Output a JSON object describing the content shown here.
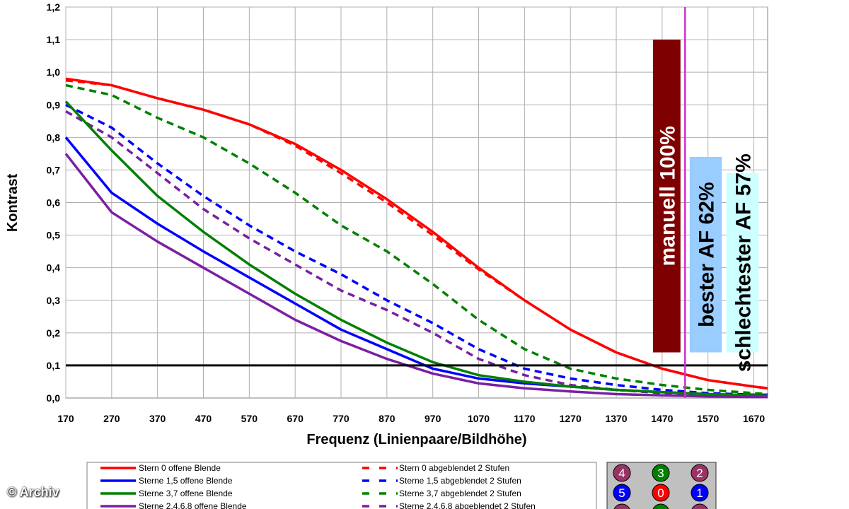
{
  "chart_data": {
    "type": "line",
    "title": "",
    "xlabel": "Frequenz (Linienpaare/Bildhöhe)",
    "ylabel": "Kontrast",
    "xlim": [
      170,
      1700
    ],
    "ylim": [
      0,
      1.2
    ],
    "xticks": [
      "170",
      "270",
      "370",
      "470",
      "570",
      "670",
      "770",
      "870",
      "970",
      "1070",
      "1170",
      "1270",
      "1370",
      "1470",
      "1570",
      "1670"
    ],
    "yticks": [
      "0,0",
      "0,1",
      "0,2",
      "0,3",
      "0,4",
      "0,5",
      "0,6",
      "0,7",
      "0,8",
      "0,9",
      "1,0",
      "1,1",
      "1,2"
    ],
    "grid": true,
    "legend_position": "bottom",
    "threshold": {
      "y": 0.1,
      "color": "#000000"
    },
    "focus_marker": {
      "x": 1520,
      "color": "#cc33cc"
    },
    "x": [
      170,
      270,
      370,
      470,
      570,
      670,
      770,
      870,
      970,
      1070,
      1170,
      1270,
      1370,
      1470,
      1570,
      1670,
      1700
    ],
    "series": [
      {
        "name": "Stern 0 offene Blende",
        "color": "#ff0000",
        "dash": false,
        "values": [
          0.98,
          0.96,
          0.92,
          0.885,
          0.84,
          0.78,
          0.7,
          0.61,
          0.51,
          0.4,
          0.3,
          0.21,
          0.14,
          0.09,
          0.055,
          0.035,
          0.03
        ]
      },
      {
        "name": "Sterne 1,5 offene Blende",
        "color": "#0000ff",
        "dash": false,
        "values": [
          0.8,
          0.63,
          0.535,
          0.45,
          0.37,
          0.29,
          0.21,
          0.15,
          0.09,
          0.06,
          0.045,
          0.035,
          0.025,
          0.018,
          0.012,
          0.008,
          0.007
        ]
      },
      {
        "name": "Sterne 3,7 offene Blende",
        "color": "#008000",
        "dash": false,
        "values": [
          0.91,
          0.76,
          0.62,
          0.51,
          0.41,
          0.32,
          0.24,
          0.17,
          0.11,
          0.07,
          0.05,
          0.035,
          0.025,
          0.018,
          0.012,
          0.008,
          0.007
        ]
      },
      {
        "name": "Sterne 2,4,6,8 offene Blende",
        "color": "#7b1fa2",
        "dash": false,
        "values": [
          0.75,
          0.57,
          0.48,
          0.4,
          0.32,
          0.24,
          0.175,
          0.12,
          0.075,
          0.045,
          0.03,
          0.02,
          0.012,
          0.008,
          0.005,
          0.003,
          0.003
        ]
      },
      {
        "name": "Stern 0 abgeblendet 2 Stufen",
        "color": "#ff0000",
        "dash": true,
        "values": [
          0.975,
          0.96,
          0.92,
          0.885,
          0.84,
          0.775,
          0.69,
          0.6,
          0.5,
          0.395,
          0.3,
          0.21,
          0.14,
          0.09,
          0.055,
          0.035,
          0.03
        ]
      },
      {
        "name": "Sterne 1,5 abgeblendet 2 Stufen",
        "color": "#0000ff",
        "dash": true,
        "values": [
          0.9,
          0.83,
          0.72,
          0.62,
          0.53,
          0.45,
          0.38,
          0.3,
          0.23,
          0.15,
          0.09,
          0.06,
          0.04,
          0.025,
          0.015,
          0.01,
          0.01
        ]
      },
      {
        "name": "Sterne 3,7 abgeblendet 2 Stufen",
        "color": "#008000",
        "dash": true,
        "values": [
          0.96,
          0.93,
          0.86,
          0.8,
          0.72,
          0.63,
          0.53,
          0.45,
          0.35,
          0.24,
          0.15,
          0.09,
          0.06,
          0.04,
          0.025,
          0.015,
          0.012
        ]
      },
      {
        "name": "Sterne 2,4,6,8 abgeblendet 2 Stufen",
        "color": "#7b1fa2",
        "dash": true,
        "values": [
          0.88,
          0.8,
          0.69,
          0.58,
          0.49,
          0.41,
          0.33,
          0.27,
          0.2,
          0.12,
          0.07,
          0.04,
          0.025,
          0.015,
          0.01,
          0.007,
          0.006
        ]
      }
    ],
    "annotation_bars": [
      {
        "label": "manuell 100%",
        "value": 1.1,
        "x_from": 1450,
        "x_to": 1510,
        "fill": "#7f0000",
        "text_color": "#ffffff"
      },
      {
        "label": "bester AF 62%",
        "value": 0.74,
        "x_from": 1530,
        "x_to": 1600,
        "fill": "#99ccff",
        "text_color": "#000000"
      },
      {
        "label": "schlechtester AF 57%",
        "value": 0.69,
        "x_from": 1610,
        "x_to": 1680,
        "fill": "#ccffff",
        "text_color": "#000000"
      }
    ]
  },
  "star_diagram": {
    "background": "#c0c0c0",
    "circles": [
      {
        "label": "4",
        "color": "#993366",
        "row": 0,
        "col": 0
      },
      {
        "label": "3",
        "color": "#008000",
        "row": 0,
        "col": 1
      },
      {
        "label": "2",
        "color": "#993366",
        "row": 0,
        "col": 2
      },
      {
        "label": "5",
        "color": "#0000ff",
        "row": 1,
        "col": 0
      },
      {
        "label": "0",
        "color": "#ff0000",
        "row": 1,
        "col": 1
      },
      {
        "label": "1",
        "color": "#0000ff",
        "row": 1,
        "col": 2
      },
      {
        "label": "",
        "color": "#993366",
        "row": 2,
        "col": 0
      },
      {
        "label": "",
        "color": "#008000",
        "row": 2,
        "col": 1
      },
      {
        "label": "",
        "color": "#993366",
        "row": 2,
        "col": 2
      }
    ]
  },
  "credit": "© Archiv"
}
